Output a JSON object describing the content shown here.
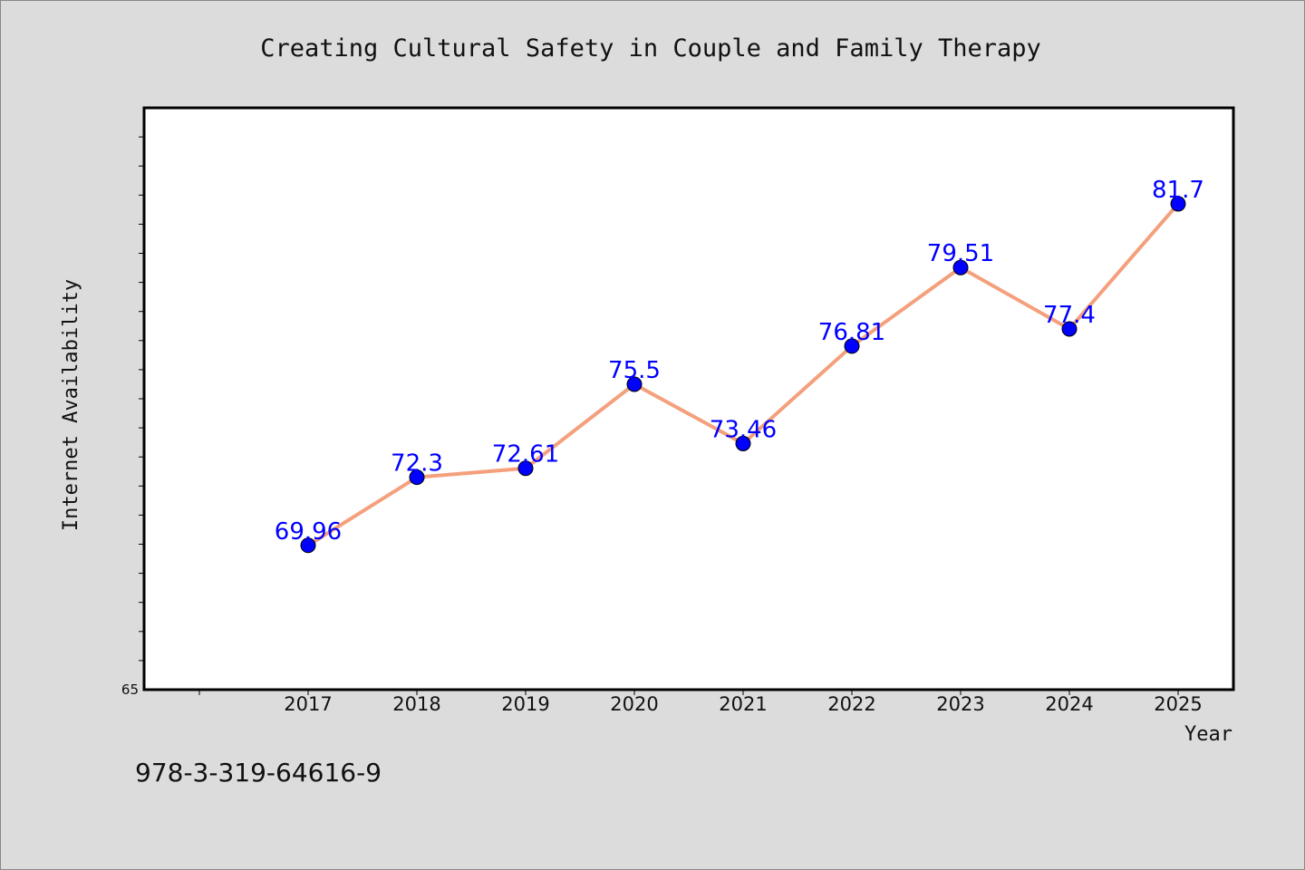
{
  "chart_data": {
    "type": "line",
    "title": "Creating Cultural Safety in Couple and Family Therapy",
    "xlabel": "Year",
    "ylabel": "Internet Availability",
    "categories": [
      "2017",
      "2018",
      "2019",
      "2020",
      "2021",
      "2022",
      "2023",
      "2024",
      "2025"
    ],
    "values": [
      69.96,
      72.3,
      72.61,
      75.5,
      73.46,
      76.81,
      79.51,
      77.4,
      81.7
    ],
    "data_labels": [
      "69.96",
      "72.3",
      "72.61",
      "75.5",
      "73.46",
      "76.81",
      "79.51",
      "77.4",
      "81.7"
    ],
    "ylim": [
      65,
      85
    ],
    "y_tick_labels": [
      "65"
    ],
    "grid": false,
    "legend": "none",
    "colors": {
      "line": "#f4a07c",
      "marker": "#0000ff",
      "label": "#0000ff",
      "plot_bg": "#ffffff",
      "page_bg": "#dcdcdc"
    }
  },
  "footer": {
    "isbn": "978-3-319-64616-9"
  }
}
